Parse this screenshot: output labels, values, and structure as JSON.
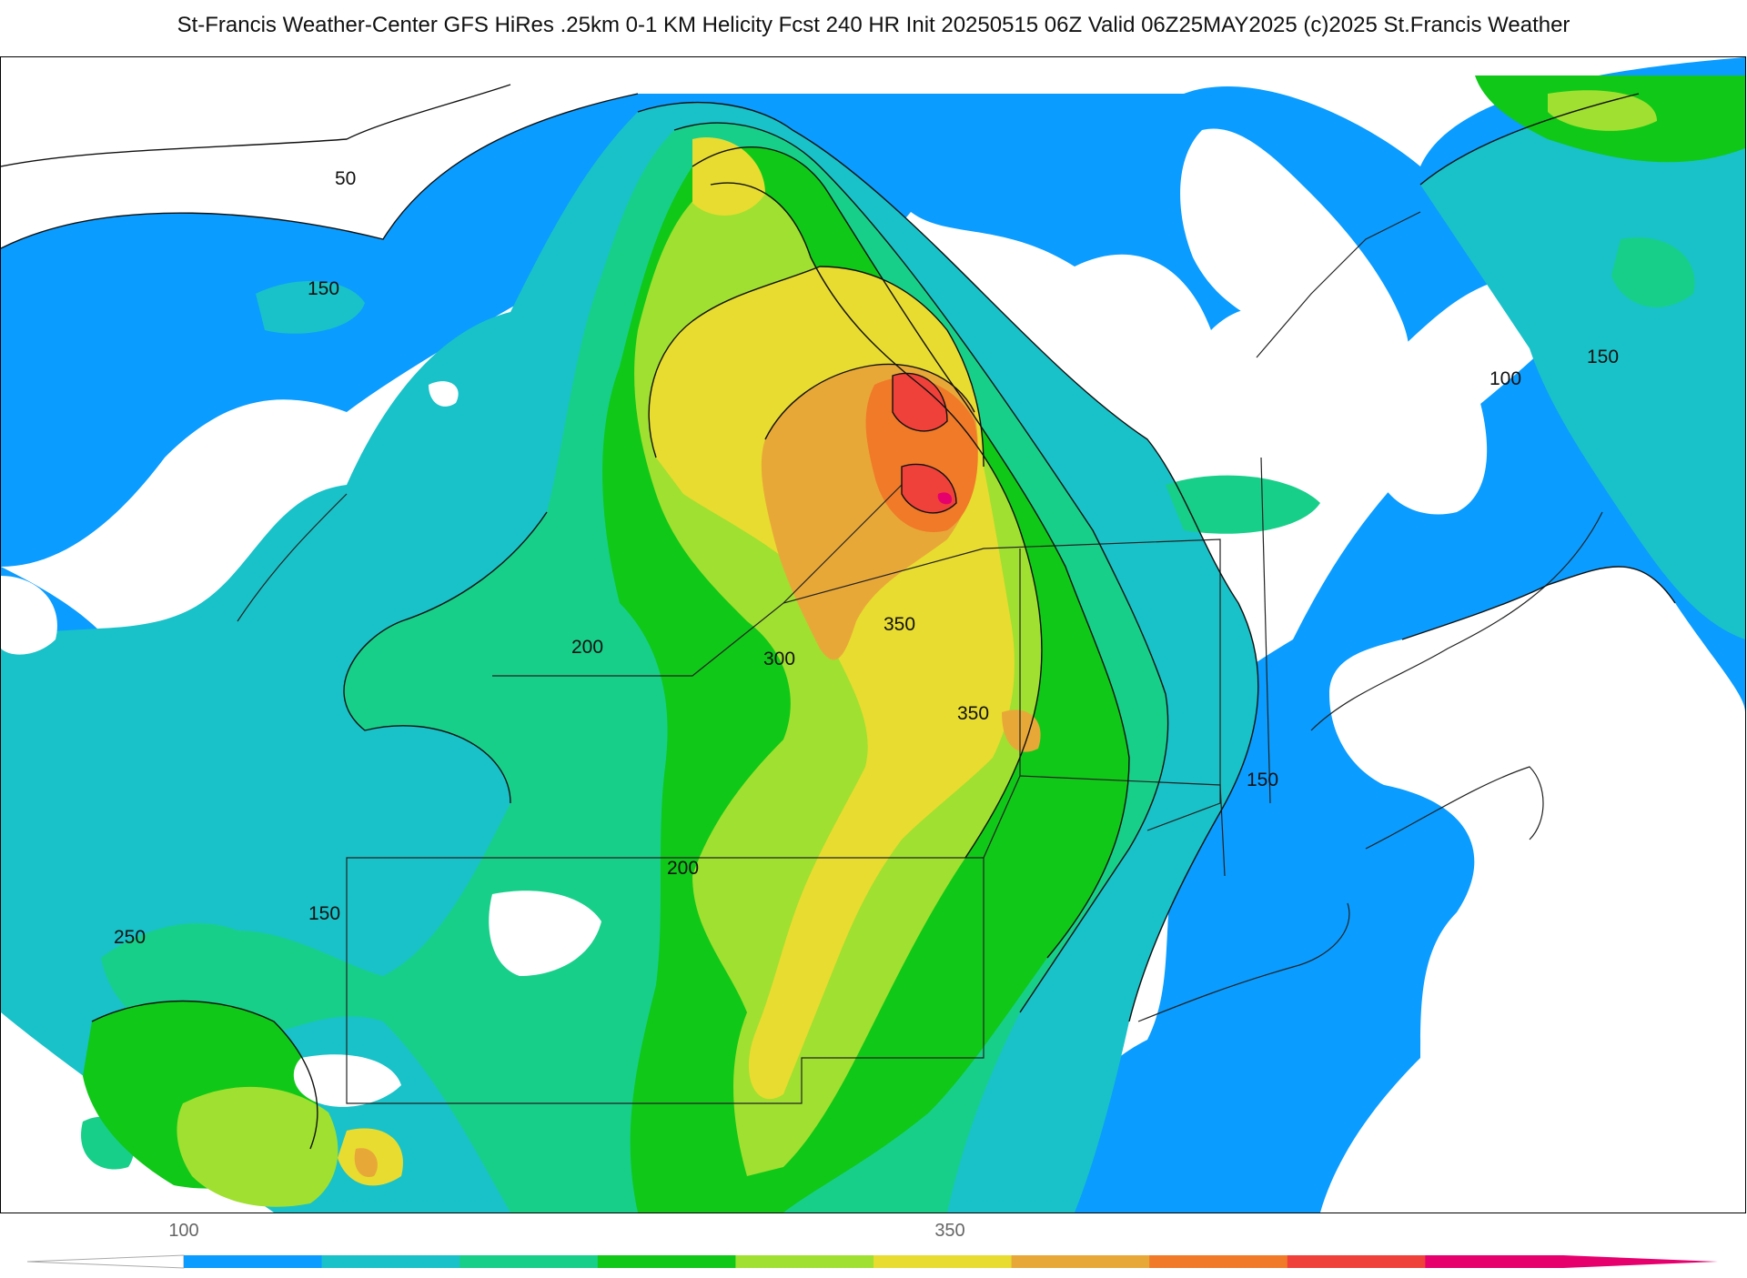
{
  "header": {
    "title": "St-Francis Weather-Center GFS HiRes .25km 0-1 KM Helicity Fcst 240 HR Init 20250515 06Z  Valid 06Z25MAY2025    (c)2025 St.Francis Weather"
  },
  "map": {
    "contour_labels": [
      "50",
      "150",
      "150",
      "100",
      "200",
      "300",
      "350",
      "350",
      "150",
      "200",
      "150",
      "250"
    ]
  },
  "colorbar": {
    "tick_labels": [
      "100",
      "350"
    ],
    "colors": [
      "#0a9cff",
      "#19c2c8",
      "#18cf8a",
      "#10c818",
      "#a0e030",
      "#e8dc30",
      "#e8a838",
      "#f07a28",
      "#f0403a",
      "#e6006e"
    ]
  }
}
